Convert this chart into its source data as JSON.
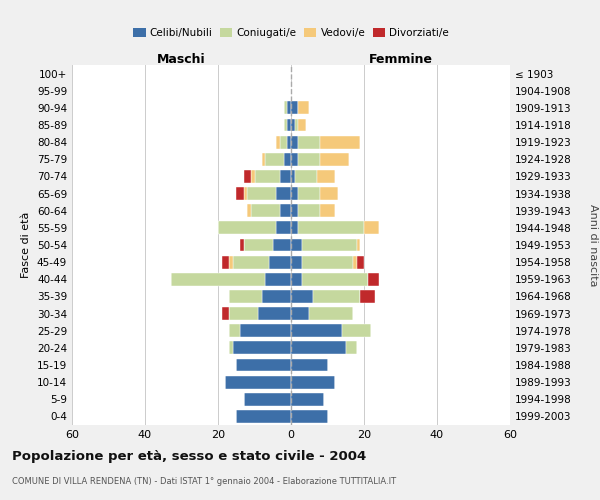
{
  "age_groups": [
    "0-4",
    "5-9",
    "10-14",
    "15-19",
    "20-24",
    "25-29",
    "30-34",
    "35-39",
    "40-44",
    "45-49",
    "50-54",
    "55-59",
    "60-64",
    "65-69",
    "70-74",
    "75-79",
    "80-84",
    "85-89",
    "90-94",
    "95-99",
    "100+"
  ],
  "birth_years": [
    "1999-2003",
    "1994-1998",
    "1989-1993",
    "1984-1988",
    "1979-1983",
    "1974-1978",
    "1969-1973",
    "1964-1968",
    "1959-1963",
    "1954-1958",
    "1949-1953",
    "1944-1948",
    "1939-1943",
    "1934-1938",
    "1929-1933",
    "1924-1928",
    "1919-1923",
    "1914-1918",
    "1909-1913",
    "1904-1908",
    "≤ 1903"
  ],
  "colors": {
    "celibi": "#3d6fa8",
    "coniugati": "#c5d89e",
    "vedovi": "#f5c97a",
    "divorziati": "#c0292b"
  },
  "maschi": {
    "celibi": [
      15,
      13,
      18,
      15,
      16,
      14,
      9,
      8,
      7,
      6,
      5,
      4,
      3,
      4,
      3,
      2,
      1,
      1,
      1,
      0,
      0
    ],
    "coniugati": [
      0,
      0,
      0,
      0,
      1,
      3,
      8,
      9,
      26,
      10,
      8,
      16,
      8,
      8,
      7,
      5,
      2,
      1,
      1,
      0,
      0
    ],
    "vedovi": [
      0,
      0,
      0,
      0,
      0,
      0,
      0,
      0,
      0,
      1,
      0,
      0,
      1,
      1,
      1,
      1,
      1,
      0,
      0,
      0,
      0
    ],
    "divorziati": [
      0,
      0,
      0,
      0,
      0,
      0,
      2,
      0,
      0,
      2,
      1,
      0,
      0,
      2,
      2,
      0,
      0,
      0,
      0,
      0,
      0
    ]
  },
  "femmine": {
    "celibi": [
      10,
      9,
      12,
      10,
      15,
      14,
      5,
      6,
      3,
      3,
      3,
      2,
      2,
      2,
      1,
      2,
      2,
      1,
      2,
      0,
      0
    ],
    "coniugati": [
      0,
      0,
      0,
      0,
      3,
      8,
      12,
      13,
      18,
      14,
      15,
      18,
      6,
      6,
      6,
      6,
      6,
      1,
      0,
      0,
      0
    ],
    "vedovi": [
      0,
      0,
      0,
      0,
      0,
      0,
      0,
      0,
      0,
      1,
      1,
      4,
      4,
      5,
      5,
      8,
      11,
      2,
      3,
      0,
      0
    ],
    "divorziati": [
      0,
      0,
      0,
      0,
      0,
      0,
      0,
      4,
      3,
      2,
      0,
      0,
      0,
      0,
      0,
      0,
      0,
      0,
      0,
      0,
      0
    ]
  },
  "xlim": 60,
  "title": "Popolazione per età, sesso e stato civile - 2004",
  "subtitle": "COMUNE DI VILLA RENDENA (TN) - Dati ISTAT 1° gennaio 2004 - Elaborazione TUTTITALIA.IT",
  "ylabel_left": "Fasce di età",
  "ylabel_right": "Anni di nascita",
  "xlabel_maschi": "Maschi",
  "xlabel_femmine": "Femmine",
  "legend_labels": [
    "Celibi/Nubili",
    "Coniugati/e",
    "Vedovi/e",
    "Divorziati/e"
  ],
  "bg_color": "#f0f0f0",
  "plot_bg": "#ffffff",
  "grid_color": "#cccccc"
}
